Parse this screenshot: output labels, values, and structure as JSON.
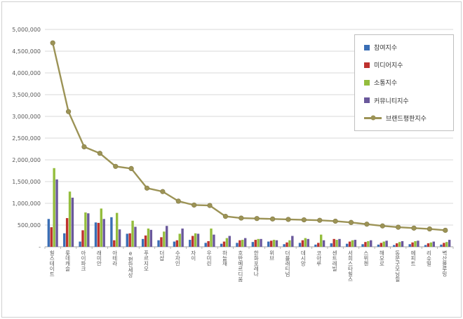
{
  "chart_data": {
    "type": "bar",
    "categories": [
      "힐스테이트",
      "롯데캐슬",
      "아이파크",
      "래미안",
      "아테라",
      "e편한세상",
      "푸르지오",
      "더샵",
      "수자인",
      "자이",
      "우미린",
      "하늘채",
      "호반베르디움",
      "한화포레나",
      "위브",
      "더플래티넘",
      "데시앙",
      "코아루",
      "센트레빌",
      "서희스타힐스",
      "스위첸",
      "해모로",
      "동문굿모닝힐",
      "에피트",
      "리슈빌",
      "벽산블루밍"
    ],
    "series": [
      {
        "name": "참여지수",
        "type": "bar",
        "color": "#3A6EB5",
        "values": [
          640000,
          310000,
          120000,
          560000,
          680000,
          300000,
          180000,
          150000,
          120000,
          160000,
          90000,
          70000,
          90000,
          110000,
          120000,
          60000,
          90000,
          50000,
          80000,
          70000,
          60000,
          50000,
          40000,
          60000,
          40000,
          50000
        ]
      },
      {
        "name": "미디어지수",
        "type": "bar",
        "color": "#BE312E",
        "values": [
          450000,
          660000,
          380000,
          550000,
          150000,
          310000,
          260000,
          220000,
          150000,
          250000,
          130000,
          120000,
          150000,
          160000,
          140000,
          100000,
          150000,
          90000,
          180000,
          120000,
          110000,
          90000,
          80000,
          100000,
          80000,
          90000
        ]
      },
      {
        "name": "소통지수",
        "type": "bar",
        "color": "#94BD3D",
        "values": [
          1810000,
          1270000,
          790000,
          880000,
          780000,
          600000,
          420000,
          350000,
          300000,
          310000,
          420000,
          200000,
          160000,
          180000,
          160000,
          150000,
          200000,
          280000,
          160000,
          150000,
          130000,
          120000,
          110000,
          130000,
          100000,
          110000
        ]
      },
      {
        "name": "커뮤니티지수",
        "type": "bar",
        "color": "#6A589B",
        "values": [
          1550000,
          1130000,
          770000,
          640000,
          400000,
          460000,
          390000,
          480000,
          420000,
          300000,
          280000,
          250000,
          200000,
          180000,
          150000,
          250000,
          180000,
          150000,
          180000,
          160000,
          150000,
          140000,
          130000,
          140000,
          120000,
          160000
        ]
      },
      {
        "name": "브랜드평판지수",
        "type": "line",
        "color": "#9C9356",
        "values": [
          4690000,
          3110000,
          2300000,
          2150000,
          1850000,
          1800000,
          1350000,
          1270000,
          1050000,
          960000,
          950000,
          700000,
          660000,
          650000,
          640000,
          630000,
          620000,
          610000,
          590000,
          560000,
          520000,
          480000,
          450000,
          430000,
          410000,
          380000
        ]
      }
    ],
    "ylim": [
      0,
      5000000
    ],
    "ytick_step": 500000,
    "ytick_labels": [
      "-",
      "500,000",
      "1,000,000",
      "1,500,000",
      "2,000,000",
      "2,500,000",
      "3,000,000",
      "3,500,000",
      "4,000,000",
      "4,500,000",
      "5,000,000"
    ],
    "grid": true,
    "legend_position": "top-right"
  }
}
